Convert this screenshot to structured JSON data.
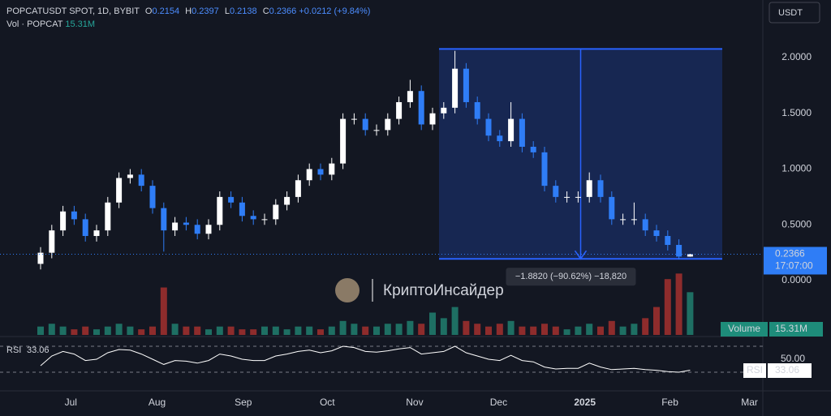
{
  "chart_data": {
    "type": "candlestick",
    "symbol": "POPCATUSDT SPOT, 1D, BYBIT",
    "ohlc_labels": [
      "O",
      "H",
      "L",
      "C"
    ],
    "change": "+0.0212 (+9.84%)",
    "volume_title": "Vol · POPCAT",
    "volume_last_label": "15.31M",
    "currency": "USDT",
    "countdown": "17:07:00",
    "watermark": "КриптоИнсайдер",
    "categories": [
      null,
      null,
      null,
      null,
      null,
      null,
      null,
      null,
      null,
      null,
      null,
      null,
      null,
      null,
      null,
      null,
      null,
      null,
      null,
      null,
      null,
      null,
      null,
      null,
      null,
      null,
      null,
      null,
      null,
      null,
      null,
      null,
      null,
      null,
      null,
      null,
      null,
      null,
      null,
      null,
      null,
      null,
      null,
      null,
      null,
      null,
      null,
      null,
      null,
      null,
      null,
      null,
      null,
      null,
      null,
      null,
      null,
      null,
      null
    ],
    "open": [
      0.15,
      0.25,
      0.45,
      0.62,
      0.55,
      0.4,
      0.45,
      0.7,
      0.92,
      0.95,
      0.85,
      0.65,
      0.45,
      0.52,
      0.5,
      0.42,
      0.5,
      0.75,
      0.7,
      0.58,
      0.55,
      0.55,
      0.68,
      0.75,
      0.9,
      1.0,
      0.95,
      1.05,
      1.45,
      1.45,
      1.35,
      1.35,
      1.45,
      1.6,
      1.7,
      1.4,
      1.5,
      1.55,
      1.9,
      1.6,
      1.45,
      1.3,
      1.25,
      1.45,
      1.2,
      1.15,
      0.85,
      0.75,
      0.75,
      0.75,
      0.9,
      0.75,
      0.55,
      0.55,
      0.55,
      0.45,
      0.4,
      0.32,
      0.2154
    ],
    "high": [
      0.3,
      0.5,
      0.67,
      0.67,
      0.6,
      0.5,
      0.75,
      0.97,
      1.0,
      1.0,
      0.9,
      0.7,
      0.57,
      0.57,
      0.55,
      0.55,
      0.8,
      0.8,
      0.75,
      0.63,
      0.6,
      0.73,
      0.8,
      0.95,
      1.05,
      1.05,
      1.1,
      1.5,
      1.5,
      1.5,
      1.4,
      1.5,
      1.65,
      1.8,
      1.75,
      1.55,
      1.6,
      2.06,
      1.95,
      1.65,
      1.5,
      1.35,
      1.6,
      1.5,
      1.25,
      1.2,
      0.9,
      0.8,
      0.8,
      0.97,
      0.95,
      0.8,
      0.6,
      0.7,
      0.6,
      0.5,
      0.45,
      0.37,
      0.2397
    ],
    "low": [
      0.1,
      0.2,
      0.4,
      0.5,
      0.35,
      0.35,
      0.4,
      0.65,
      0.87,
      0.8,
      0.6,
      0.26,
      0.4,
      0.45,
      0.37,
      0.37,
      0.45,
      0.65,
      0.53,
      0.5,
      0.5,
      0.5,
      0.63,
      0.7,
      0.85,
      0.9,
      0.9,
      1.0,
      1.4,
      1.3,
      1.3,
      1.3,
      1.4,
      1.55,
      1.35,
      1.35,
      1.45,
      1.5,
      1.55,
      1.4,
      1.25,
      1.2,
      1.2,
      1.15,
      1.1,
      0.8,
      0.7,
      0.7,
      0.7,
      0.7,
      0.7,
      0.5,
      0.5,
      0.5,
      0.4,
      0.35,
      0.27,
      0.19,
      0.2138
    ],
    "close": [
      0.25,
      0.45,
      0.62,
      0.55,
      0.4,
      0.45,
      0.7,
      0.92,
      0.95,
      0.85,
      0.65,
      0.45,
      0.52,
      0.5,
      0.42,
      0.5,
      0.75,
      0.7,
      0.58,
      0.55,
      0.55,
      0.68,
      0.75,
      0.9,
      1.0,
      0.95,
      1.05,
      1.45,
      1.45,
      1.35,
      1.35,
      1.45,
      1.6,
      1.7,
      1.4,
      1.5,
      1.55,
      1.9,
      1.6,
      1.45,
      1.3,
      1.25,
      1.45,
      1.2,
      1.15,
      0.85,
      0.75,
      0.75,
      0.75,
      0.9,
      0.75,
      0.55,
      0.55,
      0.55,
      0.45,
      0.4,
      0.32,
      0.2154,
      0.2366
    ],
    "up_color": "#ffffff",
    "down_color": "#2f7df6",
    "ylim": [
      -0.487,
      2.516
    ],
    "yticks": [
      {
        "value": 0,
        "label": "0.0000"
      },
      {
        "value": 0.5,
        "label": "0.5000"
      },
      {
        "value": 1,
        "label": "1.0000"
      },
      {
        "value": 1.5,
        "label": "1.5000"
      },
      {
        "value": 2,
        "label": "2.0000"
      }
    ],
    "xticks": [
      {
        "value": 2.7,
        "label": "Jul"
      },
      {
        "value": 10.4,
        "label": "Aug"
      },
      {
        "value": 18.1,
        "label": "Sep"
      },
      {
        "value": 25.6,
        "label": "Oct"
      },
      {
        "value": 33.4,
        "label": "Nov"
      },
      {
        "value": 40.9,
        "label": "Dec"
      },
      {
        "value": 48.6,
        "label": "2025"
      },
      {
        "value": 56.2,
        "label": "Feb"
      },
      {
        "value": 63.3,
        "label": "Mar"
      }
    ],
    "measure": {
      "from": 2.0768,
      "to": 0.1948,
      "label": "−1.8820 (−90.62%) −18,820"
    },
    "volume": {
      "name": "Volume",
      "lim": [
        0,
        25
      ],
      "up_color": "#1e6f63",
      "down_color": "#8e2c2c",
      "values": [
        3,
        4,
        3,
        2,
        3,
        2,
        3,
        4,
        3,
        2,
        3,
        17,
        4,
        3,
        3,
        2,
        3,
        3,
        2,
        2,
        3,
        3,
        2,
        3,
        3,
        2,
        3,
        5,
        4,
        3,
        3,
        4,
        4,
        5,
        4,
        8,
        6,
        10,
        5,
        4,
        3,
        4,
        5,
        3,
        3,
        4,
        3,
        2,
        3,
        4,
        3,
        5,
        3,
        4,
        6,
        10,
        20,
        22,
        15.31
      ]
    },
    "rsi": {
      "name": "RSI",
      "lim": [
        6.25,
        81.25
      ],
      "color": "#ffffff",
      "bands": [
        30,
        70
      ],
      "ticks": [
        {
          "value": 50,
          "label": "50.00"
        }
      ],
      "values": [
        40,
        55,
        62,
        58,
        48,
        50,
        60,
        65,
        64,
        58,
        50,
        42,
        48,
        47,
        44,
        48,
        58,
        55,
        50,
        48,
        48,
        55,
        58,
        62,
        64,
        60,
        63,
        70,
        68,
        62,
        61,
        63,
        66,
        68,
        58,
        60,
        62,
        70,
        60,
        55,
        50,
        48,
        56,
        48,
        46,
        38,
        35,
        36,
        36,
        44,
        38,
        34,
        35,
        36,
        34,
        33,
        31,
        30,
        33.06
      ]
    }
  }
}
